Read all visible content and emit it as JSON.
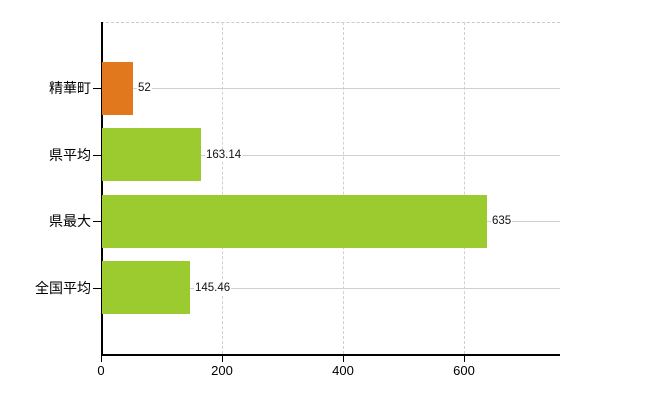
{
  "chart_data": {
    "type": "bar",
    "orientation": "horizontal",
    "title": "",
    "xlabel": "",
    "ylabel": "",
    "categories": [
      "精華町",
      "県平均",
      "県最大",
      "全国平均"
    ],
    "values": [
      52,
      163.14,
      635,
      145.46
    ],
    "value_labels": [
      "52",
      "163.14",
      "635",
      "145.46"
    ],
    "bar_colors": [
      "#E1781E",
      "#9CCB30",
      "#9CCB30",
      "#9CCB30"
    ],
    "x_ticks": [
      0,
      200,
      400,
      600
    ],
    "x_tick_labels": [
      "0",
      "200",
      "400",
      "600"
    ],
    "xlim": [
      0,
      758
    ],
    "grid": true,
    "legend": "none"
  },
  "colors": {
    "highlight_bar": "#E1781E",
    "default_bar": "#9CCB30",
    "axis": "#000000",
    "vertical_gridline": "#d2ced2",
    "horizontal_gridline": "#ccd3cc",
    "top_border": "#c9c9c9",
    "text": "#000000",
    "background": "#ffffff"
  }
}
